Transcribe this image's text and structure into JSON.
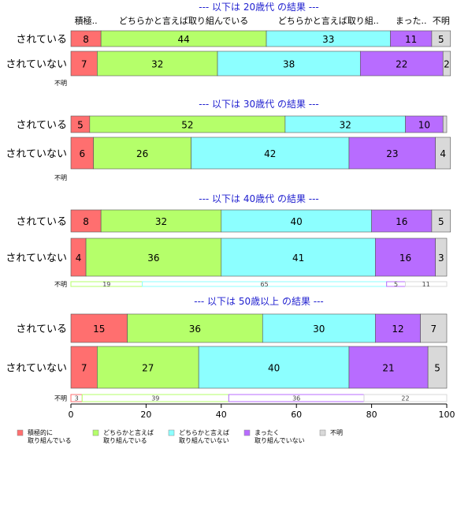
{
  "chart_data": {
    "type": "bar",
    "orientation": "horizontal-stacked-percent",
    "xlim": [
      0,
      100
    ],
    "x_ticks": [
      "0",
      "20",
      "40",
      "60",
      "80",
      "100"
    ],
    "categories_order": [
      "されている",
      "されていない",
      "不明"
    ],
    "top_column_labels": [
      "積極..",
      "どちらかと言えば取り組んでいる",
      "どちらかと言えば取り組..",
      "まった..",
      "不明"
    ],
    "series": [
      {
        "name": "積極的に\n取り組んでいる",
        "color": "#ff6f6f"
      },
      {
        "name": "どちらかと言えば\n取り組んでいる",
        "color": "#b5ff6a"
      },
      {
        "name": "どちらかと言えば\n取り組んでいない",
        "color": "#8cffff"
      },
      {
        "name": "まったく\n取り組んでいない",
        "color": "#b86cff"
      },
      {
        "name": "不明",
        "color": "#d9d9d9"
      }
    ],
    "groups": [
      {
        "title": "--- 以下は 20歳代 の結果 ---",
        "rows": [
          {
            "label": "されている",
            "values": [
              8,
              44,
              33,
              11,
              5
            ]
          },
          {
            "label": "されていない",
            "values": [
              7,
              32,
              38,
              22,
              2
            ]
          },
          {
            "label": "不明",
            "values": []
          }
        ]
      },
      {
        "title": "--- 以下は 30歳代 の結果 ---",
        "rows": [
          {
            "label": "されている",
            "values": [
              5,
              52,
              32,
              10,
              1
            ]
          },
          {
            "label": "されていない",
            "values": [
              6,
              26,
              42,
              23,
              4
            ]
          },
          {
            "label": "不明",
            "values": []
          }
        ]
      },
      {
        "title": "--- 以下は 40歳代 の結果 ---",
        "rows": [
          {
            "label": "されている",
            "values": [
              8,
              32,
              40,
              16,
              5
            ]
          },
          {
            "label": "されていない",
            "values": [
              4,
              36,
              41,
              16,
              3
            ]
          },
          {
            "label": "不明",
            "values": [
              0,
              19,
              65,
              5,
              11
            ]
          }
        ]
      },
      {
        "title": "--- 以下は 50歳以上 の結果 ---",
        "rows": [
          {
            "label": "されている",
            "values": [
              15,
              36,
              30,
              12,
              7
            ]
          },
          {
            "label": "されていない",
            "values": [
              7,
              27,
              40,
              21,
              5
            ]
          },
          {
            "label": "不明",
            "values": [
              3,
              39,
              0,
              36,
              22
            ]
          }
        ]
      }
    ]
  }
}
